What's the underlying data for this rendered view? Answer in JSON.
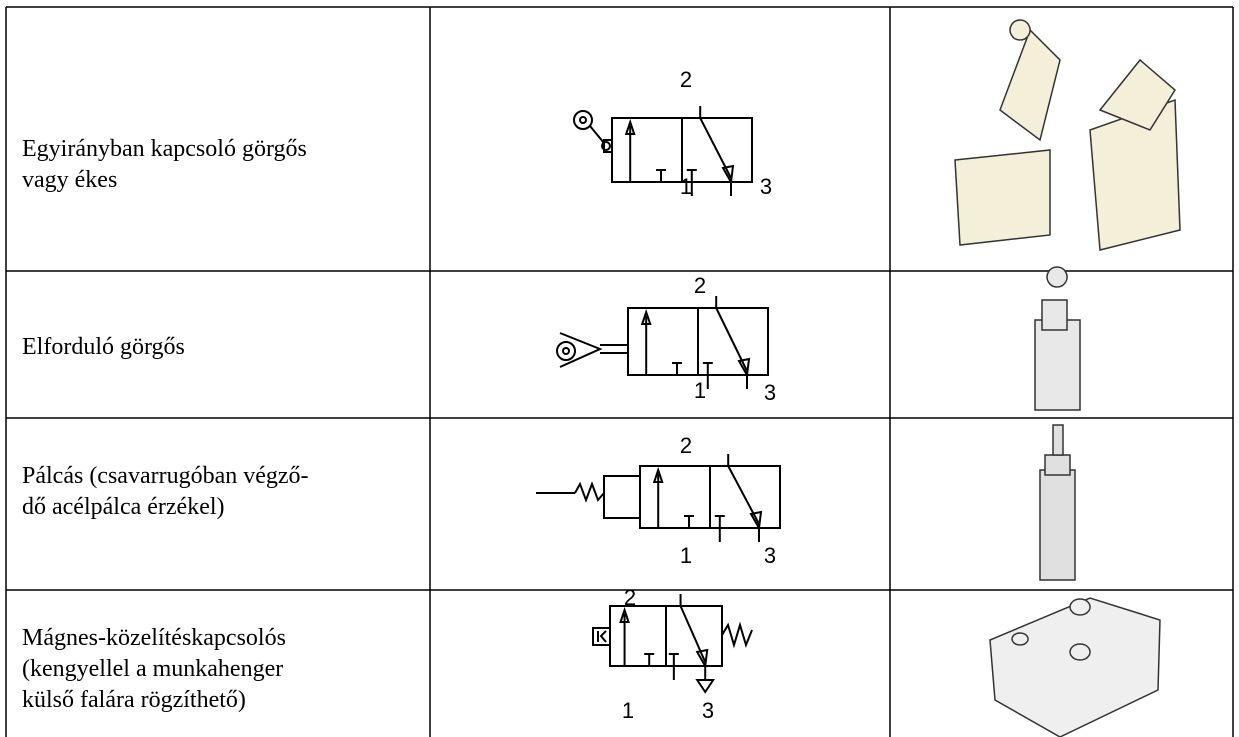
{
  "table": {
    "rows": [
      {
        "description": [
          "Egyirányban kapcsoló görgős",
          "vagy ékes"
        ],
        "ports": [
          "2",
          "1",
          "3"
        ]
      },
      {
        "description": [
          "Elforduló görgős"
        ],
        "ports": [
          "2",
          "1",
          "3"
        ]
      },
      {
        "description": [
          "Pálcás (csavarrugóban végző-",
          "dő acélpálca érzékel)"
        ],
        "ports": [
          "2",
          "1",
          "3"
        ]
      },
      {
        "description": [
          "Mágnes-közelítéskapcsolós",
          "(kengyellel a munkahenger",
          "külső falára rögzíthető)"
        ],
        "ports": [
          "2",
          "1",
          "3"
        ]
      }
    ]
  }
}
